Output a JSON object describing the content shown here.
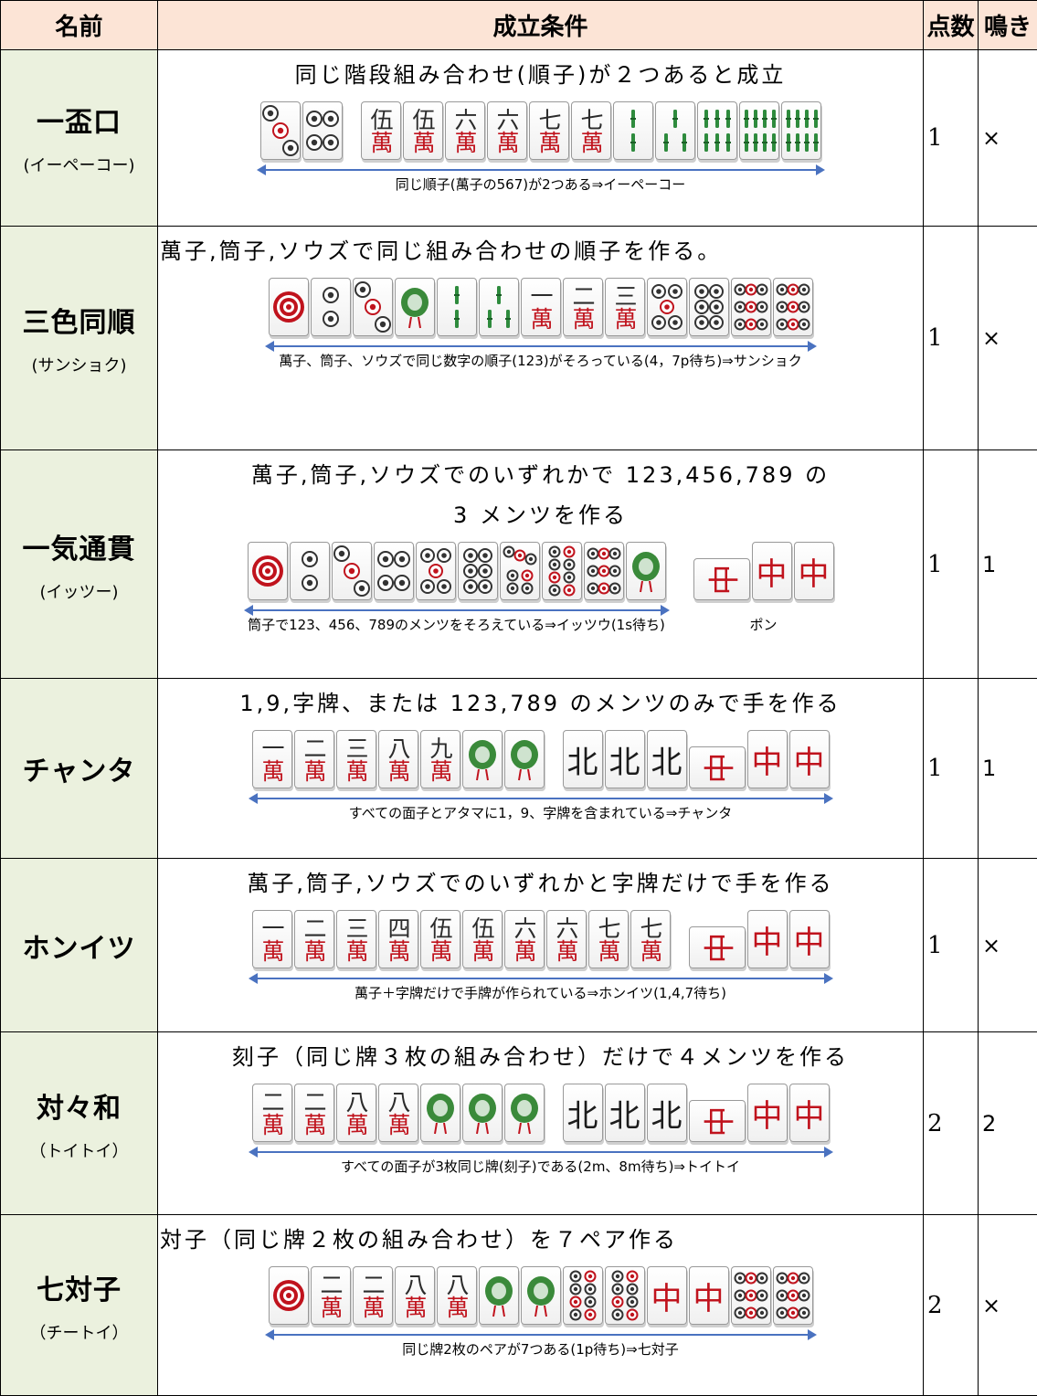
{
  "table": {
    "header": [
      "名前",
      "成立条件",
      "点数",
      "鳴き"
    ],
    "rows": [
      {
        "name": "一盃口",
        "reading": "(イーペーコー)",
        "condition": [
          "同じ階段組み合わせ(順子)が２つあると成立"
        ],
        "groups": [
          {
            "tiles": [
              "伍萬",
              "伍萬",
              "六萬",
              "六萬",
              "七萬",
              "七萬"
            ],
            "caption": "同じ順子(萬子の567)が2つある⇒イーペーコー"
          }
        ],
        "points": 1,
        "naki": "×"
      },
      {
        "name": "三色同順",
        "reading": "(サンショク)",
        "condition": [
          "萬子,筒子,ソウズで同じ組み合わせの順子を作る。"
        ],
        "groups": [
          {
            "tiles": [
              "一萬",
              "二萬",
              "三萬"
            ],
            "caption": "萬子、筒子、ソウズで同じ数字の順子(123)がそろっている(4，7p待ち)⇒サンショク"
          }
        ],
        "points": 1,
        "naki": "×"
      },
      {
        "name": "一気通貫",
        "reading": "(イッツー)",
        "condition": [
          "萬子,筒子,ソウズでのいずれかで 123,456,789 の",
          "3 メンツを作る"
        ],
        "groups": [
          {
            "tiles": [],
            "caption": "筒子で123、456、789のメンツをそろえている⇒イッツウ(1s待ち)"
          },
          {
            "tiles": [
              "中",
              "中",
              "中"
            ],
            "caption": "ポン"
          }
        ],
        "points": 1,
        "naki": 1
      },
      {
        "name": "チャンタ",
        "reading": null,
        "condition": [
          "1,9,字牌、または 123,789 のメンツのみで手を作る"
        ],
        "groups": [
          {
            "tiles": [
              "一萬",
              "二萬",
              "三萬",
              "八萬",
              "九萬",
              "北",
              "北",
              "北",
              "中",
              "中",
              "中"
            ],
            "caption": "すべての面子とアタマに1，9、字牌を含まれている⇒チャンタ"
          }
        ],
        "points": 1,
        "naki": 1
      },
      {
        "name": "ホンイツ",
        "reading": null,
        "condition": [
          "萬子,筒子,ソウズでのいずれかと字牌だけで手を作る"
        ],
        "groups": [
          {
            "tiles": [
              "一萬",
              "二萬",
              "三萬",
              "四萬",
              "伍萬",
              "伍萬",
              "六萬",
              "六萬",
              "七萬",
              "七萬",
              "中",
              "中",
              "中"
            ],
            "caption": "萬子＋字牌だけで手牌が作られている⇒ホンイツ(1,4,7待ち)"
          }
        ],
        "points": 1,
        "naki": "×"
      },
      {
        "name": "対々和",
        "reading": "（トイトイ）",
        "condition": [
          "刻子（同じ牌３枚の組み合わせ）だけで４メンツを作る"
        ],
        "groups": [
          {
            "tiles": [
              "二萬",
              "二萬",
              "八萬",
              "八萬",
              "北",
              "北",
              "北",
              "中",
              "中",
              "中"
            ],
            "caption": "すべての面子が3枚同じ牌(刻子)である(2m、8m待ち)⇒トイトイ"
          }
        ],
        "points": 2,
        "naki": 2
      },
      {
        "name": "七対子",
        "reading": "（チートイ）",
        "condition": [
          "対子（同じ牌２枚の組み合わせ）を７ペア作る"
        ],
        "groups": [
          {
            "tiles": [
              "二萬",
              "二萬",
              "八萬",
              "八萬",
              "中",
              "中"
            ],
            "caption": "同じ牌2枚のペアが7つある(1p待ち)⇒七対子"
          }
        ],
        "points": 2,
        "naki": "×"
      }
    ]
  }
}
